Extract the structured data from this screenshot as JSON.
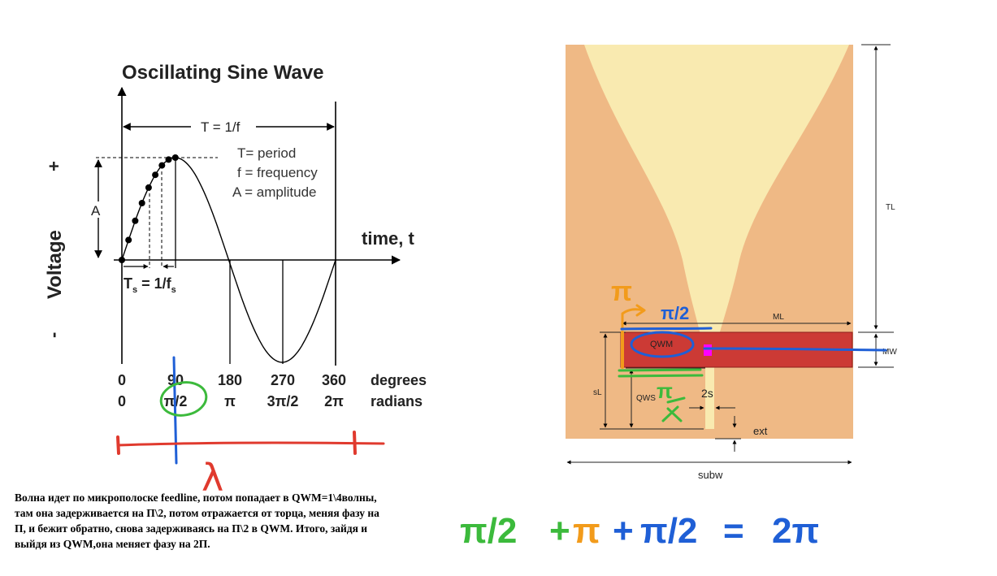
{
  "sine_figure": {
    "title": "Oscillating Sine Wave",
    "period_label": "T = 1/f",
    "legend": [
      "T= period",
      "f = frequency",
      "A = amplitude"
    ],
    "amplitude_label": "A",
    "y_axis_label": "Voltage",
    "y_plus": "+",
    "y_minus": "-",
    "x_axis_label": "time, t",
    "sample_period_label": "T",
    "sample_period_sub": "s",
    "sample_period_eq": " = 1/f",
    "sample_period_sub2": "s",
    "degree_ticks": [
      "0",
      "90",
      "180",
      "270",
      "360"
    ],
    "radian_ticks": [
      "0",
      "π/2",
      "π",
      "3π/2",
      "2π"
    ],
    "degrees_label": "degrees",
    "radians_label": "radians"
  },
  "antenna_figure": {
    "dimensions": {
      "TL": "TL",
      "ML": "ML",
      "MW": "MW",
      "sL": "sL",
      "QWS": "QWS",
      "QWM": "QWM",
      "gap": "2s",
      "ext": "ext",
      "subw": "subw"
    },
    "colors": {
      "substrate": "#efb985",
      "slot": "#f9eab0",
      "microstrip": "#cc3a35",
      "feed_dot": "#ff00ff"
    }
  },
  "annotations": {
    "pi": "π",
    "pi_over_2": "π/2",
    "lambda": "λ",
    "equation": [
      "π/2",
      "+",
      "π",
      "+",
      "π/2",
      "=",
      "2π"
    ]
  },
  "caption": {
    "lines": [
      "Волна идет по микрополоске feedline, потом попадает в QWM=1\\4волны,",
      "там она задерживается на П\\2, потом отражается от торца, меняя фазу на",
      "П, и бежит обратно, снова задерживаясь на П\\2 в QWM. Итого, зайдя и",
      "выйдя из QWM,она меняет фазу на 2П."
    ]
  }
}
